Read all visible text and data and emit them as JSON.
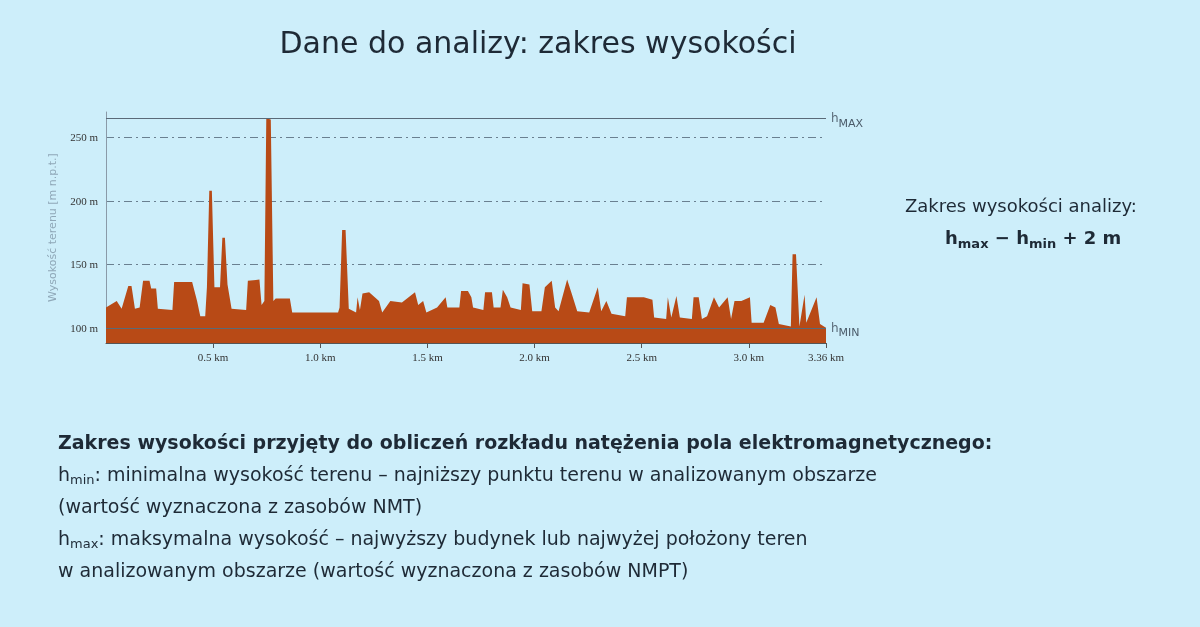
{
  "chart_data": {
    "type": "area",
    "title": "Dane do analizy: zakres wysokości",
    "ylabel": "Wysokość terenu [m n.p.t.]",
    "x": [
      0.0,
      0.05,
      0.073,
      0.104,
      0.119,
      0.135,
      0.157,
      0.173,
      0.203,
      0.211,
      0.234,
      0.242,
      0.31,
      0.318,
      0.402,
      0.425,
      0.44,
      0.463,
      0.471,
      0.482,
      0.494,
      0.506,
      0.532,
      0.543,
      0.555,
      0.567,
      0.586,
      0.654,
      0.662,
      0.716,
      0.726,
      0.739,
      0.748,
      0.769,
      0.781,
      0.792,
      0.858,
      0.869,
      1.083,
      1.09,
      1.102,
      1.118,
      1.133,
      1.167,
      1.174,
      1.185,
      1.197,
      1.228,
      1.274,
      1.289,
      1.327,
      1.381,
      1.442,
      1.457,
      1.48,
      1.495,
      1.545,
      1.585,
      1.593,
      1.649,
      1.657,
      1.689,
      1.705,
      1.713,
      1.761,
      1.769,
      1.801,
      1.809,
      1.841,
      1.852,
      1.872,
      1.888,
      1.936,
      1.944,
      1.976,
      1.989,
      2.032,
      2.048,
      2.08,
      2.096,
      2.112,
      2.152,
      2.175,
      2.199,
      2.255,
      2.295,
      2.311,
      2.335,
      2.359,
      2.423,
      2.431,
      2.47,
      2.51,
      2.55,
      2.558,
      2.614,
      2.622,
      2.638,
      2.662,
      2.678,
      2.734,
      2.742,
      2.766,
      2.781,
      2.805,
      2.837,
      2.861,
      2.901,
      2.917,
      2.933,
      2.965,
      3.005,
      3.013,
      3.069,
      3.1,
      3.124,
      3.14,
      3.196,
      3.204,
      3.22,
      3.236,
      3.26,
      3.268,
      3.316,
      3.332,
      3.36
    ],
    "series": [
      {
        "color": "#b84a16",
        "values": [
          116,
          121,
          115,
          133,
          133,
          115,
          116,
          137,
          137,
          131,
          131,
          115,
          114,
          136,
          136,
          121,
          109,
          109,
          132,
          208,
          208,
          132,
          132,
          171,
          171,
          134,
          115,
          114,
          137,
          138,
          118,
          121,
          265,
          264,
          121,
          123,
          123,
          112,
          112,
          116,
          177,
          177,
          115,
          112,
          124,
          114,
          127,
          128,
          121,
          112,
          121,
          120,
          128,
          118,
          121,
          112,
          116,
          124,
          116,
          116,
          129,
          129,
          124,
          116,
          114,
          128,
          128,
          116,
          116,
          130,
          124,
          116,
          114,
          135,
          134,
          113,
          113,
          132,
          137,
          116,
          113,
          138,
          126,
          113,
          112,
          132,
          113,
          121,
          111,
          109,
          124,
          124,
          124,
          122,
          108,
          107,
          124,
          108,
          125,
          108,
          107,
          124,
          124,
          107,
          109,
          124,
          116,
          124,
          107,
          121,
          121,
          124,
          104,
          104,
          118,
          116,
          103,
          101,
          158,
          158,
          101,
          126,
          104,
          124,
          103,
          100
        ]
      }
    ],
    "xlim": [
      0,
      3.36
    ],
    "xticks": [
      {
        "value": 0.5,
        "label": "0.5 km"
      },
      {
        "value": 1.0,
        "label": "1.0 km"
      },
      {
        "value": 1.5,
        "label": "1.5 km"
      },
      {
        "value": 2.0,
        "label": "2.0 km"
      },
      {
        "value": 2.5,
        "label": "2.5 km"
      },
      {
        "value": 3.0,
        "label": "3.0 km"
      },
      {
        "value": 3.36,
        "label": "3.36 km"
      }
    ],
    "ylim": [
      88,
      270
    ],
    "yticks": [
      {
        "value": 100,
        "label": "100 m"
      },
      {
        "value": 150,
        "label": "150 m"
      },
      {
        "value": 200,
        "label": "200 m"
      },
      {
        "value": 250,
        "label": "250 m"
      }
    ],
    "grid": "y",
    "ref_lines": [
      {
        "axis": "y",
        "value": 265,
        "label": "h$_{MAX}$",
        "color": "#5a6a78"
      },
      {
        "axis": "y",
        "value": 100,
        "label": "h$_{MIN}$",
        "color": "#5a6a78"
      }
    ],
    "annotations": [
      "Zakres wysokości analizy:",
      "h$_{max}$ − h$_{min}$ + 2 m",
      "Zakres wysokości przyjęty do obliczeń rozkładu natężenia pola elektromagnetycznego:",
      "h$_{min}$: minimalna wysokość terenu – najniższy punktu terenu w analizowanym obszarze",
      "(wartość wyznaczona z zasobów NMT)",
      "h$_{max}$: maksymalna wysokość – najwyższy budynek lub najwyżej położony teren",
      "w analizowanym obszarze (wartość wyznaczona z zasobów NMPT)"
    ]
  }
}
